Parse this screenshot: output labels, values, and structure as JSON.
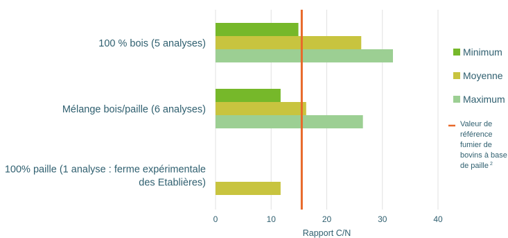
{
  "chart_data": {
    "type": "bar",
    "orientation": "horizontal",
    "categories": [
      [
        "100 % bois (5 analyses)"
      ],
      [
        "Mélange bois/paille  (6 analyses)"
      ],
      [
        "100% paille (1 analyse : ferme expérimentale",
        "des Etablières)"
      ]
    ],
    "series": [
      {
        "name": "Minimum",
        "color": "#76b82a",
        "values": [
          14.9,
          11.7,
          null
        ]
      },
      {
        "name": "Moyenne",
        "color": "#c8c43f",
        "values": [
          26.2,
          16.3,
          11.7
        ]
      },
      {
        "name": "Maximum",
        "color": "#9ccf93",
        "values": [
          31.9,
          26.5,
          null
        ]
      }
    ],
    "xlabel": "Rapport C/N",
    "xlim": [
      0,
      40
    ],
    "xticks": [
      0,
      10,
      20,
      30,
      40
    ],
    "grid": true,
    "legend_position": "right",
    "reference_line": {
      "value": 15.5,
      "color": "#e8692a",
      "label_lines": [
        "Valeur de",
        "référence",
        "fumier de",
        "bovins à base",
        "de paille"
      ],
      "label_superscript": "2"
    }
  }
}
